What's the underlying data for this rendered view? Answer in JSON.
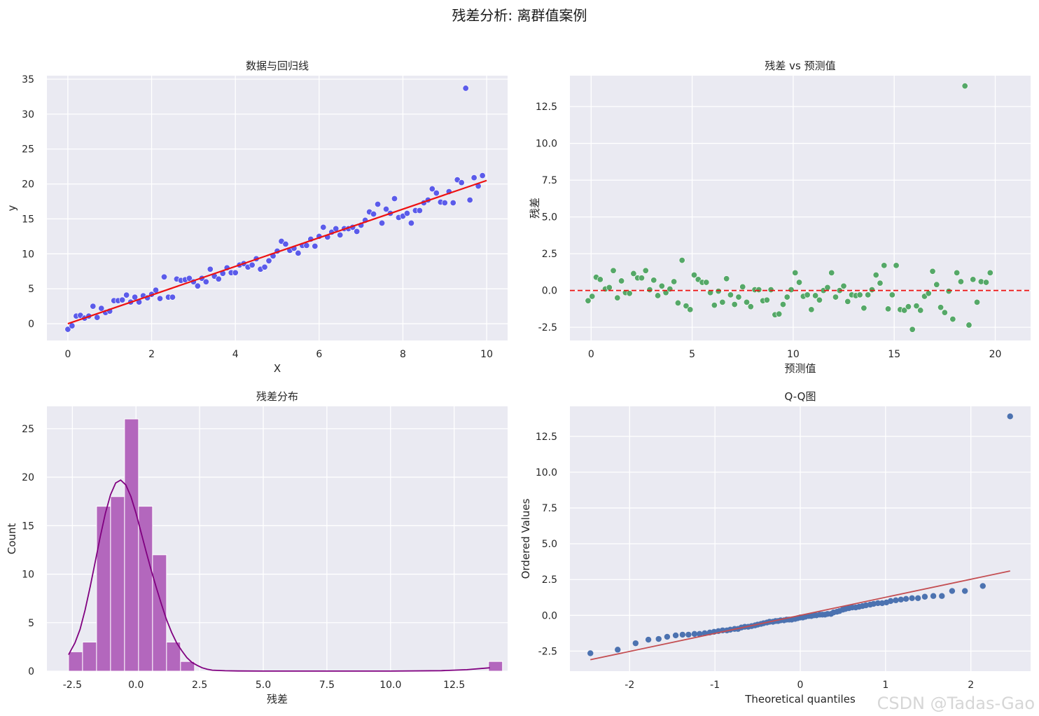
{
  "figure": {
    "suptitle": "残差分析: 离群值案例",
    "watermark": "CSDN @Tadas-Gao"
  },
  "chart_data": [
    {
      "id": "scatter-fit",
      "type": "scatter",
      "title": "数据与回归线",
      "xlabel": "X",
      "ylabel": "y",
      "xlim": [
        -0.5,
        10.5
      ],
      "ylim": [
        -2.4,
        35.5
      ],
      "xticks": [
        0,
        2,
        4,
        6,
        8,
        10
      ],
      "yticks": [
        0,
        5,
        10,
        15,
        20,
        25,
        30,
        35
      ],
      "grid": true,
      "point_color": "#5b5bea",
      "points": [
        [
          0,
          -0.8
        ],
        [
          0.1,
          -0.3
        ],
        [
          0.2,
          1.1
        ],
        [
          0.3,
          1.2
        ],
        [
          0.4,
          0.8
        ],
        [
          0.5,
          1.1
        ],
        [
          0.6,
          2.5
        ],
        [
          0.7,
          0.9
        ],
        [
          0.8,
          2.2
        ],
        [
          0.9,
          1.6
        ],
        [
          1.0,
          1.8
        ],
        [
          1.1,
          3.3
        ],
        [
          1.2,
          3.3
        ],
        [
          1.3,
          3.4
        ],
        [
          1.4,
          4.1
        ],
        [
          1.5,
          3.1
        ],
        [
          1.6,
          3.8
        ],
        [
          1.7,
          3.1
        ],
        [
          1.8,
          4.0
        ],
        [
          1.9,
          3.7
        ],
        [
          2.0,
          4.2
        ],
        [
          2.1,
          4.8
        ],
        [
          2.2,
          3.6
        ],
        [
          2.3,
          6.7
        ],
        [
          2.4,
          3.8
        ],
        [
          2.5,
          3.8
        ],
        [
          2.6,
          6.4
        ],
        [
          2.7,
          6.2
        ],
        [
          2.8,
          6.3
        ],
        [
          2.9,
          6.5
        ],
        [
          3.0,
          6.0
        ],
        [
          3.1,
          5.4
        ],
        [
          3.2,
          6.5
        ],
        [
          3.3,
          6.0
        ],
        [
          3.4,
          7.8
        ],
        [
          3.5,
          6.8
        ],
        [
          3.6,
          6.4
        ],
        [
          3.7,
          7.2
        ],
        [
          3.8,
          8.0
        ],
        [
          3.9,
          7.3
        ],
        [
          4.0,
          7.3
        ],
        [
          4.1,
          8.4
        ],
        [
          4.2,
          8.6
        ],
        [
          4.3,
          8.1
        ],
        [
          4.4,
          8.4
        ],
        [
          4.5,
          9.3
        ],
        [
          4.6,
          7.8
        ],
        [
          4.7,
          8.1
        ],
        [
          4.8,
          9.0
        ],
        [
          4.9,
          9.7
        ],
        [
          5.0,
          10.4
        ],
        [
          5.1,
          11.8
        ],
        [
          5.2,
          11.4
        ],
        [
          5.3,
          10.5
        ],
        [
          5.4,
          10.8
        ],
        [
          5.5,
          10.1
        ],
        [
          5.6,
          11.2
        ],
        [
          5.7,
          11.2
        ],
        [
          5.8,
          12.1
        ],
        [
          5.9,
          11.1
        ],
        [
          6.0,
          12.5
        ],
        [
          6.1,
          13.8
        ],
        [
          6.2,
          12.4
        ],
        [
          6.3,
          13.1
        ],
        [
          6.4,
          13.6
        ],
        [
          6.5,
          12.7
        ],
        [
          6.6,
          13.6
        ],
        [
          6.7,
          13.6
        ],
        [
          6.8,
          13.8
        ],
        [
          6.9,
          13.2
        ],
        [
          7.0,
          14.1
        ],
        [
          7.1,
          14.8
        ],
        [
          7.2,
          16.0
        ],
        [
          7.3,
          15.7
        ],
        [
          7.4,
          17.1
        ],
        [
          7.5,
          14.4
        ],
        [
          7.6,
          16.4
        ],
        [
          7.7,
          15.8
        ],
        [
          7.8,
          17.9
        ],
        [
          7.9,
          15.2
        ],
        [
          8.0,
          15.4
        ],
        [
          8.1,
          15.8
        ],
        [
          8.2,
          14.4
        ],
        [
          8.3,
          16.2
        ],
        [
          8.4,
          16.2
        ],
        [
          8.5,
          17.3
        ],
        [
          8.6,
          17.7
        ],
        [
          8.7,
          19.3
        ],
        [
          8.8,
          18.7
        ],
        [
          8.9,
          17.4
        ],
        [
          9.0,
          17.3
        ],
        [
          9.1,
          18.9
        ],
        [
          9.2,
          17.3
        ],
        [
          9.3,
          20.6
        ],
        [
          9.4,
          20.2
        ],
        [
          9.5,
          33.7
        ],
        [
          9.6,
          17.7
        ],
        [
          9.7,
          20.9
        ],
        [
          9.8,
          19.7
        ],
        [
          9.9,
          21.2
        ]
      ],
      "fit_line": {
        "color": "#ee1111",
        "x": [
          0,
          10
        ],
        "y": [
          0,
          20.5
        ]
      }
    },
    {
      "id": "residuals-vs-pred",
      "type": "scatter",
      "title": "残差 vs 预测值",
      "xlabel": "预测值",
      "ylabel": "残差",
      "xlim": [
        -1.05,
        21.75
      ],
      "ylim": [
        -3.4,
        14.6
      ],
      "xticks": [
        0,
        5,
        10,
        15,
        20
      ],
      "yticks": [
        -2.5,
        0.0,
        2.5,
        5.0,
        7.5,
        10.0,
        12.5
      ],
      "grid": true,
      "point_color": "#55a868",
      "hline": {
        "y": 0,
        "color": "#ee1111",
        "style": "dashed"
      },
      "points": [
        [
          -0.15,
          -0.7
        ],
        [
          0.05,
          -0.4
        ],
        [
          0.25,
          0.9
        ],
        [
          0.45,
          0.75
        ],
        [
          0.7,
          0.1
        ],
        [
          0.9,
          0.2
        ],
        [
          1.1,
          1.35
        ],
        [
          1.3,
          -0.5
        ],
        [
          1.5,
          0.65
        ],
        [
          1.7,
          -0.15
        ],
        [
          1.9,
          -0.2
        ],
        [
          2.1,
          1.15
        ],
        [
          2.3,
          0.85
        ],
        [
          2.5,
          0.85
        ],
        [
          2.7,
          1.35
        ],
        [
          2.9,
          0.05
        ],
        [
          3.1,
          0.7
        ],
        [
          3.3,
          -0.35
        ],
        [
          3.5,
          0.3
        ],
        [
          3.7,
          -0.15
        ],
        [
          3.9,
          0.1
        ],
        [
          4.1,
          0.6
        ],
        [
          4.3,
          -0.85
        ],
        [
          4.5,
          2.05
        ],
        [
          4.7,
          -1.05
        ],
        [
          4.9,
          -1.3
        ],
        [
          5.1,
          1.05
        ],
        [
          5.3,
          0.75
        ],
        [
          5.5,
          0.55
        ],
        [
          5.7,
          0.55
        ],
        [
          5.9,
          -0.15
        ],
        [
          6.1,
          -1.0
        ],
        [
          6.3,
          -0.05
        ],
        [
          6.5,
          -0.8
        ],
        [
          6.7,
          0.8
        ],
        [
          6.9,
          -0.3
        ],
        [
          7.1,
          -0.95
        ],
        [
          7.3,
          -0.45
        ],
        [
          7.5,
          0.25
        ],
        [
          7.7,
          -0.8
        ],
        [
          7.9,
          -1.1
        ],
        [
          8.1,
          0.05
        ],
        [
          8.3,
          0.05
        ],
        [
          8.5,
          -0.7
        ],
        [
          8.7,
          -0.65
        ],
        [
          8.9,
          0.05
        ],
        [
          9.1,
          -1.65
        ],
        [
          9.3,
          -1.6
        ],
        [
          9.5,
          -0.95
        ],
        [
          9.7,
          -0.45
        ],
        [
          9.9,
          0.05
        ],
        [
          10.1,
          1.2
        ],
        [
          10.3,
          0.55
        ],
        [
          10.5,
          -0.4
        ],
        [
          10.7,
          -0.3
        ],
        [
          10.9,
          -1.3
        ],
        [
          11.1,
          -0.35
        ],
        [
          11.3,
          -0.65
        ],
        [
          11.5,
          0.0
        ],
        [
          11.7,
          0.2
        ],
        [
          11.9,
          1.2
        ],
        [
          12.1,
          -0.45
        ],
        [
          12.3,
          0.0
        ],
        [
          12.5,
          0.3
        ],
        [
          12.7,
          -0.75
        ],
        [
          12.9,
          -0.3
        ],
        [
          13.1,
          -0.35
        ],
        [
          13.3,
          -0.3
        ],
        [
          13.5,
          -1.2
        ],
        [
          13.7,
          -0.3
        ],
        [
          13.9,
          0.05
        ],
        [
          14.1,
          1.05
        ],
        [
          14.3,
          0.5
        ],
        [
          14.5,
          1.7
        ],
        [
          14.7,
          -1.25
        ],
        [
          14.9,
          -0.3
        ],
        [
          15.1,
          1.7
        ],
        [
          15.3,
          -1.3
        ],
        [
          15.5,
          -1.35
        ],
        [
          15.7,
          -1.1
        ],
        [
          15.9,
          -2.65
        ],
        [
          16.1,
          -1.05
        ],
        [
          16.3,
          -1.35
        ],
        [
          16.5,
          -0.4
        ],
        [
          16.7,
          -0.2
        ],
        [
          16.9,
          1.3
        ],
        [
          17.1,
          0.4
        ],
        [
          17.3,
          -1.15
        ],
        [
          17.5,
          -1.5
        ],
        [
          17.7,
          -0.05
        ],
        [
          17.9,
          -1.95
        ],
        [
          18.1,
          1.2
        ],
        [
          18.3,
          0.6
        ],
        [
          18.5,
          13.9
        ],
        [
          18.7,
          -2.35
        ],
        [
          18.9,
          0.75
        ],
        [
          19.1,
          -0.8
        ],
        [
          19.3,
          0.6
        ],
        [
          19.55,
          0.55
        ],
        [
          19.75,
          1.2
        ]
      ]
    },
    {
      "id": "residual-hist",
      "type": "bar",
      "title": "残差分布",
      "xlabel": "残差",
      "ylabel": "Count",
      "xlim": [
        -3.5,
        14.6
      ],
      "ylim": [
        0,
        27.3
      ],
      "xticks": [
        -2.5,
        0.0,
        2.5,
        5.0,
        7.5,
        10.0,
        12.5
      ],
      "yticks": [
        0,
        5,
        10,
        15,
        20,
        25
      ],
      "grid": true,
      "bar_color": "#b367bd",
      "kde_color": "#800080",
      "bins": {
        "start": -2.65,
        "width": 0.55,
        "counts": [
          2,
          3,
          17,
          18,
          26,
          17,
          12,
          3,
          1,
          0,
          0,
          0,
          0,
          0,
          0,
          0,
          0,
          0,
          0,
          0,
          0,
          0,
          0,
          0,
          0,
          0,
          0,
          0,
          0,
          0,
          1
        ]
      },
      "kde": {
        "x": [
          -2.65,
          -2.4,
          -2.2,
          -2.0,
          -1.8,
          -1.6,
          -1.4,
          -1.2,
          -1.0,
          -0.8,
          -0.6,
          -0.4,
          -0.2,
          0.0,
          0.2,
          0.4,
          0.6,
          0.8,
          1.0,
          1.2,
          1.4,
          1.6,
          1.8,
          2.0,
          2.2,
          2.4,
          2.6,
          2.8,
          3.0,
          3.5,
          4.0,
          5.0,
          7.5,
          10.0,
          12.0,
          13.0,
          13.9
        ],
        "y": [
          1.7,
          2.9,
          4.3,
          6.3,
          8.7,
          11.3,
          13.9,
          16.3,
          18.2,
          19.4,
          19.7,
          19.2,
          18.0,
          16.3,
          14.3,
          12.3,
          10.4,
          8.6,
          6.9,
          5.3,
          4.0,
          2.9,
          2.1,
          1.4,
          0.9,
          0.6,
          0.35,
          0.2,
          0.1,
          0.04,
          0.02,
          0.01,
          0.01,
          0.01,
          0.05,
          0.15,
          0.35
        ]
      }
    },
    {
      "id": "qq-plot",
      "type": "scatter",
      "title": "Q-Q图",
      "xlabel": "Theoretical quantiles",
      "ylabel": "Ordered Values",
      "xlim": [
        -2.7,
        2.7
      ],
      "ylim": [
        -3.9,
        14.6
      ],
      "xticks": [
        -2,
        -1,
        0,
        1,
        2
      ],
      "yticks": [
        -2.5,
        0.0,
        2.5,
        5.0,
        7.5,
        10.0,
        12.5
      ],
      "grid": true,
      "point_color": "#4c72b0",
      "ref_line": {
        "color": "#c44e52",
        "x": [
          -2.46,
          2.46
        ],
        "y": [
          -3.1,
          3.1
        ]
      },
      "points": [
        [
          -2.46,
          -2.65
        ],
        [
          -2.14,
          -2.4
        ],
        [
          -1.93,
          -1.95
        ],
        [
          -1.78,
          -1.7
        ],
        [
          -1.66,
          -1.65
        ],
        [
          -1.56,
          -1.5
        ],
        [
          -1.46,
          -1.4
        ],
        [
          -1.38,
          -1.35
        ],
        [
          -1.31,
          -1.35
        ],
        [
          -1.24,
          -1.3
        ],
        [
          -1.18,
          -1.3
        ],
        [
          -1.12,
          -1.25
        ],
        [
          -1.06,
          -1.2
        ],
        [
          -1.01,
          -1.15
        ],
        [
          -0.96,
          -1.1
        ],
        [
          -0.91,
          -1.05
        ],
        [
          -0.86,
          -1.05
        ],
        [
          -0.82,
          -1.0
        ],
        [
          -0.77,
          -0.95
        ],
        [
          -0.73,
          -0.95
        ],
        [
          -0.69,
          -0.85
        ],
        [
          -0.65,
          -0.8
        ],
        [
          -0.61,
          -0.8
        ],
        [
          -0.57,
          -0.75
        ],
        [
          -0.53,
          -0.7
        ],
        [
          -0.5,
          -0.65
        ],
        [
          -0.46,
          -0.6
        ],
        [
          -0.43,
          -0.55
        ],
        [
          -0.39,
          -0.5
        ],
        [
          -0.36,
          -0.45
        ],
        [
          -0.32,
          -0.45
        ],
        [
          -0.29,
          -0.4
        ],
        [
          -0.26,
          -0.4
        ],
        [
          -0.23,
          -0.35
        ],
        [
          -0.19,
          -0.35
        ],
        [
          -0.16,
          -0.3
        ],
        [
          -0.13,
          -0.3
        ],
        [
          -0.1,
          -0.3
        ],
        [
          -0.06,
          -0.25
        ],
        [
          -0.03,
          -0.2
        ],
        [
          0.0,
          -0.15
        ],
        [
          0.03,
          -0.15
        ],
        [
          0.06,
          -0.1
        ],
        [
          0.1,
          -0.05
        ],
        [
          0.13,
          -0.05
        ],
        [
          0.16,
          0.0
        ],
        [
          0.19,
          0.0
        ],
        [
          0.23,
          0.05
        ],
        [
          0.26,
          0.05
        ],
        [
          0.29,
          0.05
        ],
        [
          0.32,
          0.1
        ],
        [
          0.36,
          0.1
        ],
        [
          0.39,
          0.2
        ],
        [
          0.43,
          0.25
        ],
        [
          0.46,
          0.3
        ],
        [
          0.5,
          0.4
        ],
        [
          0.53,
          0.45
        ],
        [
          0.57,
          0.5
        ],
        [
          0.61,
          0.55
        ],
        [
          0.65,
          0.55
        ],
        [
          0.69,
          0.6
        ],
        [
          0.73,
          0.65
        ],
        [
          0.77,
          0.7
        ],
        [
          0.82,
          0.75
        ],
        [
          0.86,
          0.8
        ],
        [
          0.91,
          0.85
        ],
        [
          0.96,
          0.85
        ],
        [
          1.01,
          0.9
        ],
        [
          1.06,
          1.0
        ],
        [
          1.12,
          1.05
        ],
        [
          1.18,
          1.1
        ],
        [
          1.24,
          1.15
        ],
        [
          1.31,
          1.2
        ],
        [
          1.38,
          1.2
        ],
        [
          1.46,
          1.3
        ],
        [
          1.56,
          1.35
        ],
        [
          1.66,
          1.35
        ],
        [
          1.78,
          1.7
        ],
        [
          1.93,
          1.7
        ],
        [
          2.14,
          2.05
        ],
        [
          2.46,
          13.9
        ]
      ]
    }
  ]
}
